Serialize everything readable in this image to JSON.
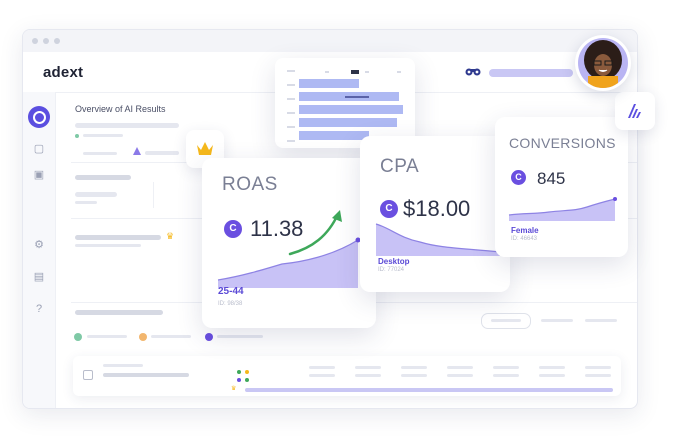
{
  "app": {
    "logo_text": "adext"
  },
  "page": {
    "title": "Overview of AI Results"
  },
  "kpis": [
    {
      "key": "roas",
      "title": "ROAS",
      "badge": "C",
      "value": "11.38",
      "segment": "25-44",
      "segment_id": "ID: 98/38",
      "trend": "up"
    },
    {
      "key": "cpa",
      "title": "CPA",
      "badge": "C",
      "value": "$18.00",
      "segment": "Desktop",
      "segment_id": "ID: 77024",
      "trend": "down"
    },
    {
      "key": "conversions",
      "title": "CONVERSIONS",
      "badge": "C",
      "value": "845",
      "segment": "Female",
      "segment_id": "ID: 46643",
      "trend": "up"
    }
  ],
  "icons": {
    "crown": "crown-icon",
    "brand": "adext-brand-icon",
    "binoculars": "binoculars-icon",
    "help": "?"
  },
  "colors": {
    "accent": "#6a4fe0",
    "chart_fill": "#c8c2f6",
    "trend_arrow": "#3ea85a",
    "bar_chart": "#aeb9f3"
  },
  "chart_data": [
    {
      "type": "area",
      "series": [
        {
          "values": [
            4,
            5,
            6,
            7,
            8,
            11,
            15
          ]
        }
      ]
    },
    {
      "type": "area",
      "series": [
        {
          "values": [
            12,
            11,
            7,
            6,
            5,
            4,
            3
          ]
        }
      ]
    },
    {
      "type": "area",
      "series": [
        {
          "values": [
            3,
            3,
            4,
            4,
            6,
            7,
            9
          ]
        }
      ]
    }
  ]
}
